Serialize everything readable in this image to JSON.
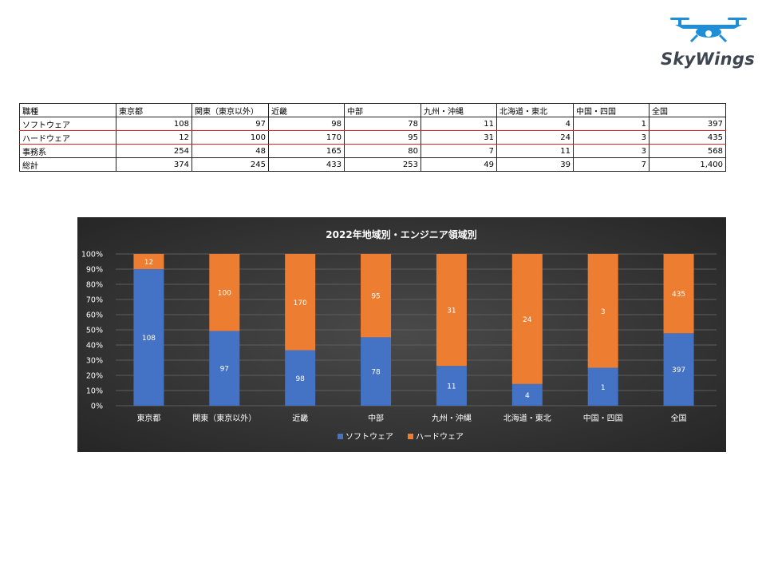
{
  "logo": {
    "text": "SkyWings",
    "icon": "drone-icon",
    "color": "#1e8fd6"
  },
  "table": {
    "headers": [
      "職種",
      "東京都",
      "関東（東京以外）",
      "近畿",
      "中部",
      "九州・沖縄",
      "北海道・東北",
      "中国・四国",
      "全国"
    ],
    "rows": [
      {
        "label": "ソフトウェア",
        "values": [
          "108",
          "97",
          "98",
          "78",
          "11",
          "4",
          "1",
          "397"
        ]
      },
      {
        "label": "ハードウェア",
        "values": [
          "12",
          "100",
          "170",
          "95",
          "31",
          "24",
          "3",
          "435"
        ]
      },
      {
        "label": "事務系",
        "values": [
          "254",
          "48",
          "165",
          "80",
          "7",
          "11",
          "3",
          "568"
        ]
      },
      {
        "label": "総計",
        "values": [
          "374",
          "245",
          "433",
          "253",
          "49",
          "39",
          "7",
          "1,400"
        ]
      }
    ]
  },
  "chart_data": {
    "type": "bar",
    "stacked": "percent",
    "title": "2022年地域別・エンジニア領域別",
    "categories": [
      "東京都",
      "関東（東京以外）",
      "近畿",
      "中部",
      "九州・沖縄",
      "北海道・東北",
      "中国・四国",
      "全国"
    ],
    "series": [
      {
        "name": "ソフトウェア",
        "values": [
          108,
          97,
          98,
          78,
          11,
          4,
          1,
          397
        ],
        "color": "#4472c4"
      },
      {
        "name": "ハードウェア",
        "values": [
          12,
          100,
          170,
          95,
          31,
          24,
          3,
          435
        ],
        "color": "#ed7d31"
      }
    ],
    "yticks": [
      "0%",
      "10%",
      "20%",
      "30%",
      "40%",
      "50%",
      "60%",
      "70%",
      "80%",
      "90%",
      "100%"
    ],
    "ylim": [
      0,
      100
    ],
    "grid": true,
    "legend": "bottom",
    "background": "#3a3a3a",
    "text_color": "#ffffff"
  }
}
